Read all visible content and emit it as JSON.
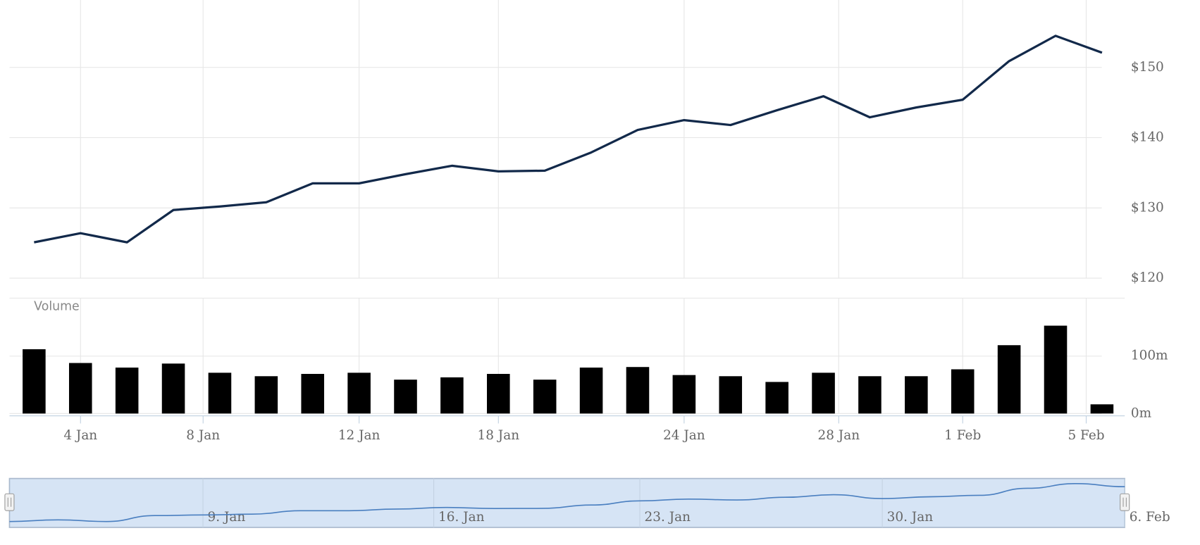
{
  "chart_data": {
    "type": "stock",
    "xlim": [
      -0.53,
      23.49
    ],
    "xticks": [
      {
        "value": 1,
        "label": "4 Jan"
      },
      {
        "value": 3.64,
        "label": "8 Jan"
      },
      {
        "value": 7,
        "label": "12 Jan"
      },
      {
        "value": 10,
        "label": "18 Jan"
      },
      {
        "value": 14,
        "label": "24 Jan"
      },
      {
        "value": 17.33,
        "label": "28 Jan"
      },
      {
        "value": 20,
        "label": "1 Feb"
      },
      {
        "value": 22.66,
        "label": "5 Feb"
      }
    ],
    "grid": true,
    "price": {
      "color": "#12294a",
      "values": [
        125.1,
        126.4,
        125.1,
        129.7,
        130.2,
        130.8,
        133.5,
        133.5,
        134.8,
        136.0,
        135.2,
        135.3,
        137.9,
        141.1,
        142.5,
        141.8,
        143.9,
        145.9,
        142.9,
        144.3,
        145.4,
        150.9,
        154.5,
        152.1
      ],
      "ylim": [
        118.9,
        159.6
      ],
      "yticks": [
        {
          "value": 120,
          "label": "$120"
        },
        {
          "value": 130,
          "label": "$130"
        },
        {
          "value": 140,
          "label": "$140"
        },
        {
          "value": 150,
          "label": "$150"
        }
      ]
    },
    "volume": {
      "title": "Volume",
      "color": "#000000",
      "values": [
        112,
        88,
        80,
        87,
        71,
        65,
        69,
        71,
        59,
        63,
        69,
        59,
        80,
        81,
        67,
        65,
        55,
        71,
        65,
        65,
        77,
        119,
        153,
        16
      ],
      "ylim": [
        0,
        201
      ],
      "yticks": [
        {
          "value": 0,
          "label": "0m"
        },
        {
          "value": 100,
          "label": "100m"
        }
      ]
    },
    "navigator": {
      "xlim": [
        0,
        23
      ],
      "ylim": [
        123.5,
        155.5
      ],
      "fill": "#d6e4f5",
      "line_color": "#4a7fc0",
      "xticks": [
        {
          "value": 3.99,
          "label": "9. Jan"
        },
        {
          "value": 8.75,
          "label": "16. Jan"
        },
        {
          "value": 13,
          "label": "23. Jan"
        },
        {
          "value": 18,
          "label": "30. Jan"
        },
        {
          "value": 23,
          "label": "6. Feb"
        }
      ]
    }
  }
}
